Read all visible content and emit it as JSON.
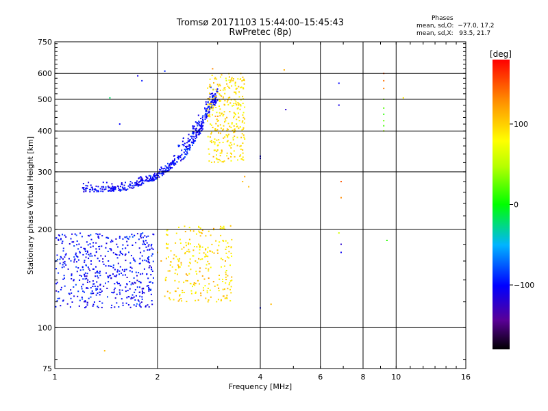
{
  "chart_data": {
    "type": "scatter",
    "title": "Tromsø 20171103 15:44:00–15:45:43",
    "subtitle": "RwPretec (8p)",
    "xlabel": "Frequency [MHz]",
    "ylabel": "Stationary phase Virtual Height [km]",
    "xscale": "log",
    "yscale": "log",
    "xlim": [
      1,
      16
    ],
    "ylim": [
      75,
      750
    ],
    "xticks": [
      1,
      2,
      4,
      6,
      8,
      10,
      16
    ],
    "xtick_labels": [
      "1",
      "2",
      "4",
      "6",
      "8",
      "10",
      "16"
    ],
    "yticks": [
      75,
      100,
      200,
      300,
      400,
      500,
      600,
      750
    ],
    "ytick_labels": [
      "75",
      "100",
      "200",
      "300",
      "400",
      "500",
      "600",
      "750"
    ],
    "grid": true,
    "legend": {
      "heading": "Phases",
      "line1": "mean, sd,O:  −77.0, 17.2",
      "line2": "mean, sd,X:   93.5, 21.7"
    },
    "colorbar": {
      "label": "[deg]",
      "range": [
        -180,
        180
      ],
      "ticks": [
        100,
        0,
        -100
      ],
      "tick_labels": [
        "100",
        "0",
        "−100"
      ],
      "colormap": "rainbow"
    },
    "series": [
      {
        "name": "O-mode F-layer",
        "cluster": "arc",
        "x_range": [
          1.2,
          3.0
        ],
        "y_curve": [
          [
            1.2,
            260
          ],
          [
            1.6,
            262
          ],
          [
            2.0,
            285
          ],
          [
            2.4,
            330
          ],
          [
            2.7,
            400
          ],
          [
            2.9,
            480
          ]
        ],
        "phase_deg": -100,
        "count": 520
      },
      {
        "name": "X-mode F-layer",
        "cluster": "block",
        "x_range": [
          2.8,
          3.6
        ],
        "y_range": [
          320,
          600
        ],
        "phase_deg": 95,
        "count": 300
      },
      {
        "name": "O-mode E-region",
        "cluster": "block",
        "x_range": [
          1.0,
          1.95
        ],
        "y_range": [
          115,
          195
        ],
        "phase_deg": -100,
        "count": 520
      },
      {
        "name": "X-mode E-region",
        "cluster": "block",
        "x_range": [
          2.1,
          3.3
        ],
        "y_range": [
          120,
          205
        ],
        "phase_deg": 95,
        "count": 260
      },
      {
        "name": "High-frequency echoes",
        "cluster": "points",
        "x": [
          6.8,
          6.8,
          6.8,
          6.9,
          6.9,
          6.9,
          6.9,
          9.2,
          9.2,
          9.2,
          9.2,
          9.2,
          9.2,
          9.2,
          9.2,
          9.2,
          10.5,
          9.4
        ],
        "y": [
          560,
          480,
          195,
          180,
          170,
          280,
          250,
          600,
          570,
          540,
          500,
          470,
          450,
          430,
          415,
          400,
          505,
          185
        ],
        "phase": [
          -100,
          -110,
          60,
          -120,
          -105,
          150,
          130,
          150,
          140,
          135,
          30,
          20,
          10,
          25,
          15,
          40,
          90,
          10
        ]
      },
      {
        "name": "Sparse echoes",
        "cluster": "points",
        "x": [
          1.4,
          1.55,
          1.75,
          1.8,
          2.0,
          2.05,
          4.0,
          4.0,
          4.3,
          4.7,
          4.75,
          3.7,
          3.55,
          3.6,
          2.9,
          1.45,
          2.1,
          3.0,
          3.15,
          4.0
        ],
        "y": [
          85,
          420,
          590,
          570,
          170,
          160,
          330,
          115,
          118,
          615,
          465,
          270,
          280,
          290,
          620,
          505,
          610,
          555,
          200,
          335
        ],
        "phase": [
          110,
          -100,
          -110,
          -95,
          100,
          120,
          -105,
          -100,
          110,
          115,
          -120,
          110,
          110,
          120,
          130,
          -20,
          -90,
          110,
          105,
          -105
        ]
      }
    ]
  }
}
